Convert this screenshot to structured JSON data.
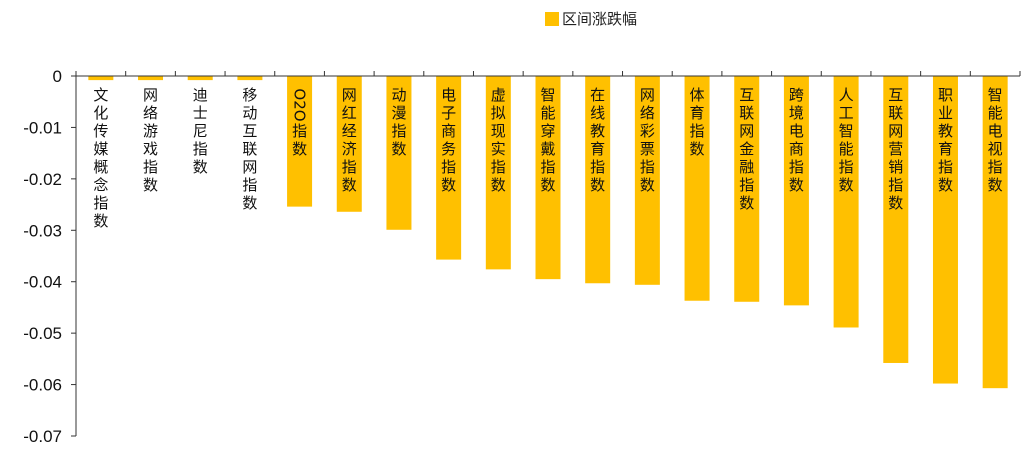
{
  "chart_data": {
    "type": "bar",
    "series": [
      {
        "name": "区间涨跌幅",
        "color": "#FFC000",
        "values": [
          -0.0008,
          -0.0008,
          -0.0008,
          -0.0008,
          -0.0254,
          -0.0264,
          -0.0299,
          -0.0357,
          -0.0376,
          -0.0395,
          -0.0403,
          -0.0406,
          -0.0437,
          -0.0439,
          -0.0446,
          -0.0489,
          -0.0558,
          -0.0598,
          -0.0607
        ]
      }
    ],
    "categories": [
      "文化传媒概念指数",
      "网络游戏指数",
      "迪士尼指数",
      "移动互联网指数",
      "O2O指数",
      "网红经济指数",
      "动漫指数",
      "电子商务指数",
      "虚拟现实指数",
      "智能穿戴指数",
      "在线教育指数",
      "网络彩票指数",
      "体育指数",
      "互联网金融指数",
      "跨境电商指数",
      "人工智能指数",
      "互联网营销指数",
      "职业教育指数",
      "智能电视指数"
    ],
    "yticks": [
      "0",
      "-0.01",
      "-0.02",
      "-0.03",
      "-0.04",
      "-0.05",
      "-0.06",
      "-0.07"
    ],
    "ylim": [
      -0.07,
      0
    ],
    "legend_position": "top-center",
    "grid": false
  }
}
